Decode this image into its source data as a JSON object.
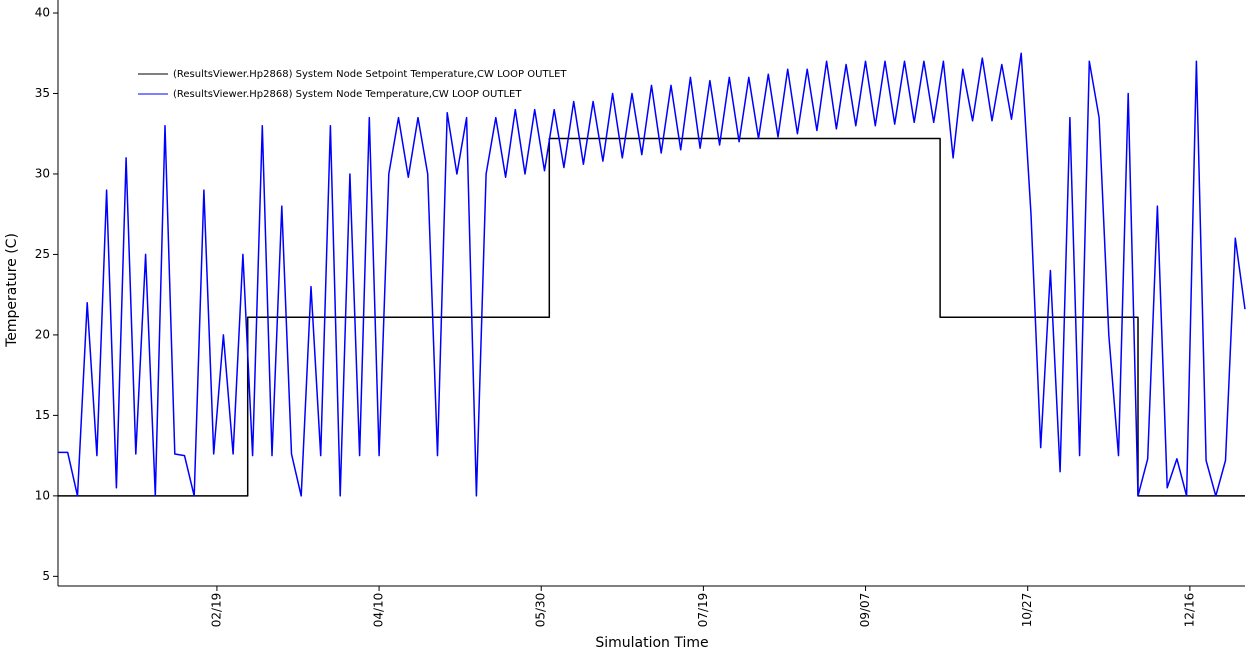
{
  "chart_data": {
    "type": "line",
    "xlabel": "Simulation Time",
    "ylabel": "Temperature (C)",
    "xlim": [
      1,
      367
    ],
    "ylim": [
      4.4,
      40
    ],
    "yticks": [
      5,
      10,
      15,
      20,
      25,
      30,
      35,
      40
    ],
    "xticks": [
      {
        "value": 50,
        "label": "02/19"
      },
      {
        "value": 100,
        "label": "04/10"
      },
      {
        "value": 150,
        "label": "05/30"
      },
      {
        "value": 200,
        "label": "07/19"
      },
      {
        "value": 250,
        "label": "09/07"
      },
      {
        "value": 300,
        "label": "10/27"
      },
      {
        "value": 350,
        "label": "12/16"
      }
    ],
    "legend": "upper left",
    "series": [
      {
        "name": "(ResultsViewer.Hp2868) System Node Setpoint Temperature,CW LOOP OUTLET",
        "color": "#000000",
        "x": [
          1,
          59.5,
          59.5,
          152.5,
          152.5,
          273,
          273,
          334,
          334,
          367
        ],
        "values": [
          10,
          10,
          21.1,
          21.1,
          32.2,
          32.2,
          21.1,
          21.1,
          10,
          10
        ]
      },
      {
        "name": "(ResultsViewer.Hp2868) System Node Temperature,CW LOOP OUTLET",
        "color": "#0000ff",
        "x": [
          1,
          4,
          7,
          10,
          13,
          16,
          19,
          22,
          25,
          28,
          31,
          34,
          37,
          40,
          43,
          46,
          49,
          52,
          55,
          58,
          61,
          64,
          67,
          70,
          73,
          76,
          79,
          82,
          85,
          88,
          91,
          94,
          97,
          100,
          103,
          106,
          109,
          112,
          115,
          118,
          121,
          124,
          127,
          130,
          133,
          136,
          139,
          142,
          145,
          148,
          151,
          154,
          157,
          160,
          163,
          166,
          169,
          172,
          175,
          178,
          181,
          184,
          187,
          190,
          193,
          196,
          199,
          202,
          205,
          208,
          211,
          214,
          217,
          220,
          223,
          226,
          229,
          232,
          235,
          238,
          241,
          244,
          247,
          250,
          253,
          256,
          259,
          262,
          265,
          268,
          271,
          274,
          277,
          280,
          283,
          286,
          289,
          292,
          295,
          298,
          301,
          304,
          307,
          310,
          313,
          316,
          319,
          322,
          325,
          328,
          331,
          334,
          337,
          340,
          343,
          346,
          349,
          352,
          355,
          358,
          361,
          364,
          367
        ],
        "values": [
          12.7,
          12.7,
          10,
          22,
          12.5,
          29,
          10.5,
          31,
          12.6,
          25,
          10,
          33,
          12.6,
          12.5,
          10,
          29,
          12.6,
          20,
          12.6,
          25,
          12.5,
          33,
          12.5,
          28,
          12.6,
          10,
          23,
          12.5,
          33,
          10,
          30,
          12.5,
          33.5,
          12.5,
          30,
          33.5,
          29.8,
          33.5,
          30,
          12.5,
          33.8,
          30,
          33.5,
          10,
          30,
          33.5,
          29.8,
          34,
          30,
          34,
          30.2,
          34,
          30.4,
          34.5,
          30.6,
          34.5,
          30.8,
          35,
          31,
          35,
          31.2,
          35.5,
          31.3,
          35.5,
          31.5,
          36,
          31.6,
          35.8,
          31.8,
          36,
          32,
          36,
          32.2,
          36.2,
          32.3,
          36.5,
          32.5,
          36.5,
          32.7,
          37,
          32.8,
          36.8,
          33,
          37,
          33,
          37,
          33.1,
          37,
          33.2,
          37,
          33.2,
          37,
          31,
          36.5,
          33.3,
          37.2,
          33.3,
          36.8,
          33.4,
          37.5,
          27.5,
          13,
          24,
          11.5,
          33.5,
          12.5,
          37,
          33.5,
          20,
          12.5,
          35,
          10,
          12.3,
          28,
          10.5,
          12.3,
          10,
          37,
          12.2,
          10,
          12.2,
          26,
          21.6
        ]
      }
    ]
  }
}
